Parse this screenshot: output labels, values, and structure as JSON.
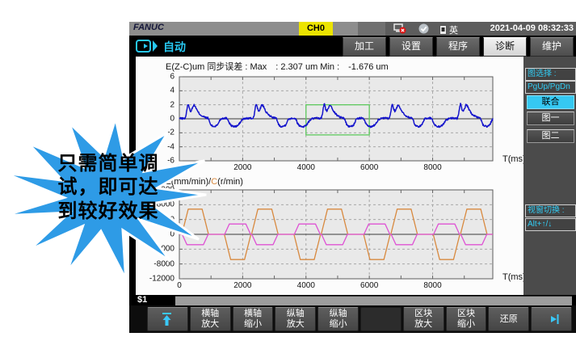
{
  "callout": {
    "fill": "#2e9be6",
    "text_lines": [
      "只需简单调",
      "试，即可达",
      "到较好效果"
    ]
  },
  "titlebar": {
    "logo": "FANUC",
    "channel": "CH0",
    "channel_bg": "#ece400",
    "icons": [
      "network-error-icon",
      "check-circle-icon",
      "ime-icon"
    ],
    "lang": "英",
    "datetime": "2021-04-09 08:32:33"
  },
  "navbar": {
    "mode": "自动",
    "accent": "#27c8f2",
    "tabs": [
      {
        "label": "加工",
        "active": false
      },
      {
        "label": "设置",
        "active": false
      },
      {
        "label": "程序",
        "active": false
      },
      {
        "label": "诊断",
        "active": true
      },
      {
        "label": "维护",
        "active": false
      }
    ]
  },
  "sidebar": {
    "select_label": "图选择 :",
    "page_hint": "PgUp/PgDn",
    "buttons": [
      {
        "label": "联合",
        "active": true
      },
      {
        "label": "图一",
        "active": false
      },
      {
        "label": "图二",
        "active": false
      }
    ],
    "switch_label": "视窗切换 :",
    "switch_keys": "Alt+↑/↓"
  },
  "statusbar": {
    "channel": "$1"
  },
  "softkeys": [
    {
      "name": "softkey-top",
      "icon": "up-arrow-icon",
      "label_lines": []
    },
    {
      "name": "softkey-haxis-zoom-in",
      "label_lines": [
        "横轴",
        "放大"
      ]
    },
    {
      "name": "softkey-haxis-zoom-out",
      "label_lines": [
        "横轴",
        "缩小"
      ]
    },
    {
      "name": "softkey-vaxis-zoom-in",
      "label_lines": [
        "纵轴",
        "放大"
      ]
    },
    {
      "name": "softkey-vaxis-zoom-out",
      "label_lines": [
        "纵轴",
        "缩小"
      ]
    },
    {
      "name": "softkey-empty",
      "label_lines": []
    },
    {
      "name": "softkey-block-zoom-in",
      "label_lines": [
        "区块",
        "放大"
      ]
    },
    {
      "name": "softkey-block-zoom-out",
      "label_lines": [
        "区块",
        "缩小"
      ]
    },
    {
      "name": "softkey-restore",
      "label_lines": [
        "还原"
      ]
    },
    {
      "name": "softkey-next",
      "icon": "next-arrow-icon",
      "label_lines": []
    }
  ],
  "chart_data": [
    {
      "type": "line",
      "title": "E(Z-C)um  同步误差 : Max　: 2.307 um  Min :　-1.676 um",
      "max_value_um": 2.307,
      "min_value_um": -1.676,
      "xlabel": "T(ms)",
      "xlim": [
        0,
        9900
      ],
      "ylim": [
        -6,
        6
      ],
      "x_ticks": [
        0,
        2000,
        4000,
        6000,
        8000
      ],
      "y_ticks": [
        6,
        4,
        2,
        0,
        -2,
        -4,
        -6
      ],
      "grid": true,
      "selection_rect": {
        "t0": 4000,
        "t1": 6000,
        "v0": -2.3,
        "v1": 2.0,
        "color": "#5ec95e"
      },
      "series": [
        {
          "name": "sync-error",
          "color": "#1414cc",
          "period_ms": 2150,
          "t_start": 120,
          "repeats": 5,
          "noise": 0.13,
          "pattern": [
            [
              0,
              0.05
            ],
            [
              60,
              0.05
            ],
            [
              100,
              0.7
            ],
            [
              130,
              1.6
            ],
            [
              160,
              2.2
            ],
            [
              200,
              1.4
            ],
            [
              240,
              1.05
            ],
            [
              290,
              1.5
            ],
            [
              330,
              2.0
            ],
            [
              380,
              1.8
            ],
            [
              430,
              1.3
            ],
            [
              480,
              0.9
            ],
            [
              540,
              0.6
            ],
            [
              600,
              0.4
            ],
            [
              660,
              0.25
            ],
            [
              720,
              0.15
            ],
            [
              780,
              0.1
            ],
            [
              820,
              -0.2
            ],
            [
              860,
              -0.8
            ],
            [
              920,
              -1.05
            ],
            [
              1000,
              -1.1
            ],
            [
              1080,
              -0.9
            ],
            [
              1130,
              -0.45
            ],
            [
              1180,
              -0.05
            ],
            [
              1260,
              0.08
            ],
            [
              1340,
              0.1
            ],
            [
              1400,
              0.05
            ],
            [
              1450,
              -0.5
            ],
            [
              1510,
              -0.95
            ],
            [
              1590,
              -1.1
            ],
            [
              1670,
              -1.1
            ],
            [
              1740,
              -0.9
            ],
            [
              1800,
              -0.55
            ],
            [
              1860,
              -0.15
            ],
            [
              1930,
              0.02
            ],
            [
              2010,
              0.06
            ],
            [
              2090,
              0.08
            ],
            [
              2150,
              0.05
            ]
          ]
        }
      ]
    },
    {
      "type": "line",
      "title_parts": [
        "Z(mm/min)/",
        "C",
        "(r/min)"
      ],
      "xlabel": "T(ms)",
      "xlim": [
        0,
        9900
      ],
      "ylim": [
        -12000,
        12000
      ],
      "x_ticks": [
        0,
        2000,
        4000,
        6000,
        8000
      ],
      "y_ticks": [
        12000,
        8000,
        4000,
        0,
        -4000,
        -8000,
        -12000
      ],
      "grid": true,
      "series": [
        {
          "name": "z-feed",
          "color": "#d8893f",
          "points": [
            [
              0,
              0
            ],
            [
              80,
              0
            ],
            [
              280,
              6800
            ],
            [
              720,
              6800
            ],
            [
              920,
              0
            ],
            [
              1420,
              0
            ],
            [
              1620,
              -6800
            ],
            [
              2060,
              -6800
            ],
            [
              2260,
              0
            ],
            [
              2280,
              0
            ],
            [
              2480,
              6800
            ],
            [
              2920,
              6800
            ],
            [
              3120,
              0
            ],
            [
              3620,
              0
            ],
            [
              3820,
              -6800
            ],
            [
              4260,
              -6800
            ],
            [
              4460,
              0
            ],
            [
              4480,
              0
            ],
            [
              4680,
              6800
            ],
            [
              5120,
              6800
            ],
            [
              5320,
              0
            ],
            [
              5820,
              0
            ],
            [
              6020,
              -6800
            ],
            [
              6460,
              -6800
            ],
            [
              6660,
              0
            ],
            [
              6680,
              0
            ],
            [
              6880,
              6800
            ],
            [
              7320,
              6800
            ],
            [
              7520,
              0
            ],
            [
              8020,
              0
            ],
            [
              8220,
              -6800
            ],
            [
              8660,
              -6800
            ],
            [
              8860,
              0
            ],
            [
              8880,
              0
            ],
            [
              9080,
              6800
            ],
            [
              9520,
              6800
            ],
            [
              9720,
              0
            ],
            [
              9900,
              0
            ]
          ]
        },
        {
          "name": "c-speed",
          "color": "#de53d4",
          "points": [
            [
              0,
              0
            ],
            [
              90,
              0
            ],
            [
              240,
              -2800
            ],
            [
              760,
              -2800
            ],
            [
              910,
              0
            ],
            [
              1430,
              0
            ],
            [
              1580,
              2800
            ],
            [
              2100,
              2800
            ],
            [
              2250,
              0
            ],
            [
              2290,
              0
            ],
            [
              2440,
              -2800
            ],
            [
              2960,
              -2800
            ],
            [
              3110,
              0
            ],
            [
              3630,
              0
            ],
            [
              3780,
              2800
            ],
            [
              4300,
              2800
            ],
            [
              4450,
              0
            ],
            [
              4490,
              0
            ],
            [
              4640,
              -2800
            ],
            [
              5160,
              -2800
            ],
            [
              5310,
              0
            ],
            [
              5830,
              0
            ],
            [
              5980,
              2800
            ],
            [
              6500,
              2800
            ],
            [
              6650,
              0
            ],
            [
              6690,
              0
            ],
            [
              6840,
              -2800
            ],
            [
              7360,
              -2800
            ],
            [
              7510,
              0
            ],
            [
              8030,
              0
            ],
            [
              8180,
              2800
            ],
            [
              8700,
              2800
            ],
            [
              8850,
              0
            ],
            [
              8890,
              0
            ],
            [
              9040,
              -2800
            ],
            [
              9560,
              -2800
            ],
            [
              9710,
              0
            ],
            [
              9900,
              0
            ]
          ]
        }
      ]
    }
  ]
}
